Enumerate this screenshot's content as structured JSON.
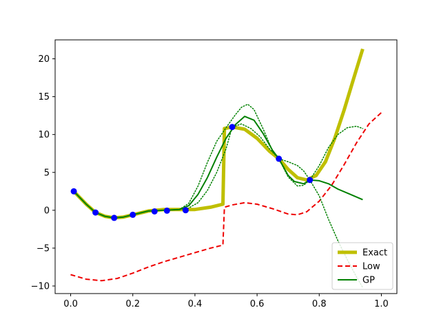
{
  "chart_data": {
    "type": "line",
    "title": "",
    "xlabel": "",
    "ylabel": "",
    "xlim": [
      -0.05,
      1.05
    ],
    "ylim": [
      -11,
      22.5
    ],
    "xticks": [
      0.0,
      0.2,
      0.4,
      0.6,
      0.8,
      1.0
    ],
    "xtick_labels": [
      "0.0",
      "0.2",
      "0.4",
      "0.6",
      "0.8",
      "1.0"
    ],
    "yticks": [
      -10,
      -5,
      0,
      5,
      10,
      15,
      20
    ],
    "ytick_labels": [
      "−10",
      "−5",
      "0",
      "5",
      "10",
      "15",
      "20"
    ],
    "grid": false,
    "legend_position": "lower-right",
    "series": [
      {
        "name": "Exact",
        "color": "#bfbf00",
        "style": "solid-thick",
        "x": [
          0.01,
          0.05,
          0.08,
          0.11,
          0.14,
          0.17,
          0.2,
          0.25,
          0.3,
          0.35,
          0.4,
          0.45,
          0.49,
          0.495,
          0.52,
          0.56,
          0.6,
          0.64,
          0.67,
          0.7,
          0.73,
          0.76,
          0.79,
          0.82,
          0.85,
          0.88,
          0.91,
          0.94
        ],
        "y": [
          2.5,
          0.8,
          -0.3,
          -0.8,
          -1.0,
          -0.9,
          -0.6,
          -0.1,
          0.1,
          0.1,
          0.1,
          0.4,
          0.8,
          10.8,
          11.0,
          10.7,
          9.5,
          7.8,
          6.8,
          5.4,
          4.3,
          4.0,
          4.6,
          6.4,
          9.5,
          13.2,
          17.3,
          21.3
        ]
      },
      {
        "name": "Low",
        "color": "#ee0000",
        "style": "dashed",
        "x": [
          0.0,
          0.05,
          0.1,
          0.15,
          0.2,
          0.25,
          0.3,
          0.35,
          0.4,
          0.45,
          0.49,
          0.495,
          0.52,
          0.56,
          0.6,
          0.65,
          0.7,
          0.73,
          0.76,
          0.8,
          0.84,
          0.88,
          0.92,
          0.96,
          1.0
        ],
        "y": [
          -8.5,
          -9.1,
          -9.3,
          -9.0,
          -8.3,
          -7.5,
          -6.8,
          -6.2,
          -5.6,
          -5.0,
          -4.6,
          0.4,
          0.7,
          1.0,
          0.8,
          0.2,
          -0.5,
          -0.6,
          -0.2,
          1.2,
          3.3,
          6.0,
          8.9,
          11.4,
          12.9
        ]
      },
      {
        "name": "GP",
        "color": "#008000",
        "style": "solid",
        "x": [
          0.01,
          0.05,
          0.08,
          0.11,
          0.14,
          0.17,
          0.2,
          0.25,
          0.3,
          0.35,
          0.38,
          0.41,
          0.44,
          0.47,
          0.5,
          0.53,
          0.56,
          0.59,
          0.62,
          0.65,
          0.67,
          0.7,
          0.72,
          0.75,
          0.77,
          0.8,
          0.83,
          0.86,
          0.9,
          0.94
        ],
        "y": [
          2.5,
          0.8,
          -0.3,
          -0.8,
          -1.0,
          -0.9,
          -0.6,
          -0.1,
          0.0,
          0.1,
          0.6,
          2.1,
          4.3,
          7.0,
          9.5,
          11.3,
          12.4,
          11.9,
          10.1,
          7.9,
          6.8,
          4.6,
          3.8,
          3.5,
          4.0,
          3.9,
          3.5,
          2.8,
          2.1,
          1.4
        ]
      },
      {
        "name": "",
        "color": "#008000",
        "style": "dotted",
        "x": [
          0.01,
          0.05,
          0.08,
          0.11,
          0.14,
          0.17,
          0.2,
          0.25,
          0.3,
          0.35,
          0.38,
          0.41,
          0.44,
          0.47,
          0.5,
          0.53,
          0.55,
          0.57,
          0.59,
          0.62,
          0.65,
          0.67,
          0.7,
          0.73,
          0.75,
          0.77,
          0.8,
          0.83,
          0.86,
          0.89,
          0.92,
          0.94
        ],
        "y": [
          2.5,
          0.8,
          -0.3,
          -0.8,
          -1.0,
          -0.9,
          -0.6,
          -0.1,
          0.0,
          0.1,
          0.9,
          3.2,
          6.3,
          9.1,
          10.9,
          12.6,
          13.6,
          14.0,
          13.3,
          10.7,
          7.8,
          6.8,
          6.4,
          5.9,
          5.2,
          4.0,
          1.9,
          -1.2,
          -4.0,
          -6.5,
          -8.8,
          -10.2
        ]
      },
      {
        "name": "",
        "color": "#008000",
        "style": "dotted",
        "x": [
          0.01,
          0.05,
          0.08,
          0.11,
          0.14,
          0.17,
          0.2,
          0.25,
          0.3,
          0.35,
          0.38,
          0.41,
          0.44,
          0.47,
          0.5,
          0.52,
          0.55,
          0.58,
          0.61,
          0.64,
          0.67,
          0.7,
          0.73,
          0.75,
          0.77,
          0.8,
          0.83,
          0.86,
          0.89,
          0.92,
          0.94
        ],
        "y": [
          2.5,
          0.8,
          -0.3,
          -0.8,
          -1.0,
          -0.9,
          -0.6,
          -0.1,
          0.0,
          0.1,
          0.3,
          1.0,
          2.6,
          5.0,
          8.1,
          11.0,
          11.4,
          10.8,
          9.7,
          8.1,
          6.8,
          4.4,
          3.2,
          3.3,
          4.0,
          5.9,
          8.3,
          10.0,
          10.9,
          11.1,
          10.8
        ]
      }
    ],
    "points": {
      "name": "",
      "color": "#0000ff",
      "x": [
        0.01,
        0.08,
        0.14,
        0.2,
        0.27,
        0.31,
        0.37,
        0.52,
        0.67,
        0.77
      ],
      "y": [
        2.5,
        -0.3,
        -1.0,
        -0.6,
        -0.15,
        -0.05,
        0.0,
        11.0,
        6.8,
        4.0
      ]
    },
    "legend": [
      {
        "label": "Exact",
        "color": "#bfbf00",
        "style": "solid-thick"
      },
      {
        "label": "Low",
        "color": "#ee0000",
        "style": "dashed"
      },
      {
        "label": "GP",
        "color": "#008000",
        "style": "solid"
      }
    ]
  }
}
